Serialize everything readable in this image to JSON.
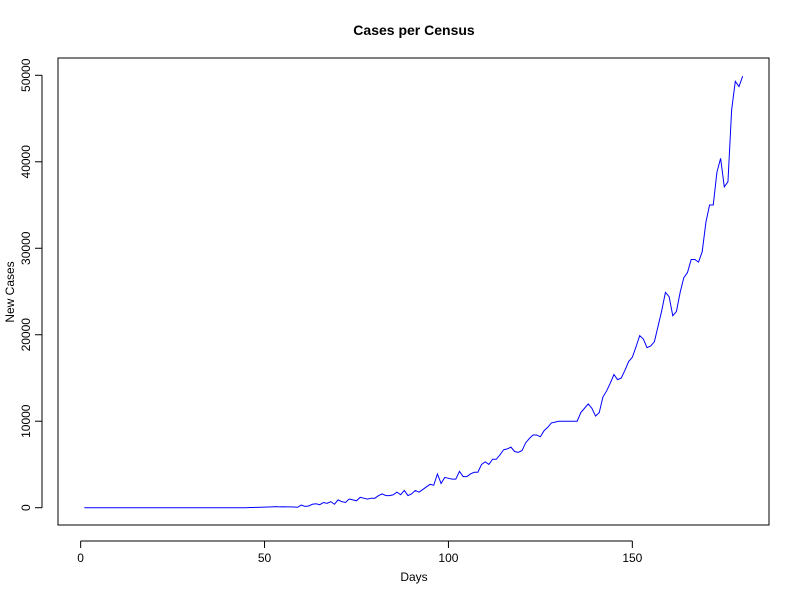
{
  "chart_data": {
    "type": "line",
    "title": "Cases per Census",
    "x_label": "Days",
    "y_label": "New Cases",
    "color": "#0000ff",
    "x": [
      1,
      2,
      3,
      4,
      5,
      6,
      7,
      8,
      9,
      10,
      11,
      12,
      13,
      14,
      15,
      16,
      17,
      18,
      19,
      20,
      21,
      22,
      23,
      24,
      25,
      26,
      27,
      28,
      29,
      30,
      31,
      32,
      33,
      34,
      35,
      36,
      37,
      38,
      39,
      40,
      41,
      42,
      43,
      44,
      45,
      46,
      47,
      48,
      49,
      50,
      51,
      52,
      53,
      54,
      55,
      56,
      57,
      58,
      59,
      60,
      61,
      62,
      63,
      64,
      65,
      66,
      67,
      68,
      69,
      70,
      71,
      72,
      73,
      74,
      75,
      76,
      77,
      78,
      79,
      80,
      81,
      82,
      83,
      84,
      85,
      86,
      87,
      88,
      89,
      90,
      91,
      92,
      93,
      94,
      95,
      96,
      97,
      98,
      99,
      100,
      101,
      102,
      103,
      104,
      105,
      106,
      107,
      108,
      109,
      110,
      111,
      112,
      113,
      114,
      115,
      116,
      117,
      118,
      119,
      120,
      121,
      122,
      123,
      124,
      125,
      126,
      127,
      128,
      129,
      130,
      131,
      132,
      133,
      134,
      135,
      136,
      137,
      138,
      139,
      140,
      141,
      142,
      143,
      144,
      145,
      146,
      147,
      148,
      149,
      150,
      151,
      152,
      153,
      154,
      155,
      156,
      157,
      158,
      159,
      160,
      161,
      162,
      163,
      164,
      165,
      166,
      167,
      168,
      169,
      170,
      171,
      172,
      173,
      174,
      175,
      176,
      177,
      178,
      179,
      180
    ],
    "values": [
      0,
      0,
      0,
      0,
      0,
      0,
      0,
      0,
      0,
      0,
      0,
      0,
      0,
      0,
      0,
      0,
      0,
      0,
      0,
      0,
      0,
      0,
      0,
      0,
      0,
      0,
      0,
      0,
      0,
      0,
      0,
      0,
      0,
      0,
      0,
      0,
      0,
      0,
      0,
      0,
      0,
      0,
      0,
      0,
      0,
      20,
      30,
      40,
      50,
      60,
      80,
      100,
      120,
      100,
      110,
      90,
      100,
      80,
      50,
      300,
      150,
      200,
      400,
      450,
      350,
      600,
      500,
      700,
      400,
      900,
      700,
      600,
      1000,
      900,
      800,
      1200,
      1100,
      1000,
      1100,
      1100,
      1400,
      1600,
      1400,
      1400,
      1500,
      1800,
      1500,
      2000,
      1400,
      1600,
      2000,
      1800,
      2100,
      2400,
      2700,
      2600,
      3900,
      2800,
      3500,
      3400,
      3300,
      3300,
      4200,
      3600,
      3600,
      3900,
      4100,
      4100,
      5000,
      5300,
      5000,
      5600,
      5600,
      6100,
      6700,
      6800,
      7000,
      6500,
      6400,
      6600,
      7500,
      8000,
      8400,
      8400,
      8200,
      8900,
      9300,
      9800,
      9900,
      10000,
      10000,
      10000,
      10000,
      10000,
      10000,
      11000,
      11500,
      12000,
      11500,
      10600,
      11000,
      12800,
      13500,
      14400,
      15400,
      14800,
      15000,
      15900,
      16900,
      17400,
      18600,
      19900,
      19500,
      18500,
      18700,
      19200,
      21000,
      22800,
      24900,
      24400,
      22200,
      22700,
      24900,
      26600,
      27200,
      28700,
      28700,
      28400,
      29600,
      33000,
      35000,
      35000,
      38800,
      40400,
      37100,
      37700,
      46000,
      49300,
      48700,
      49900
    ],
    "xlim": [
      -6.16,
      187.16
    ],
    "xticks": [
      0,
      50,
      100,
      150
    ],
    "ylim": [
      -2000,
      52000
    ],
    "yticks": [
      0,
      10000,
      20000,
      30000,
      40000,
      50000
    ]
  }
}
